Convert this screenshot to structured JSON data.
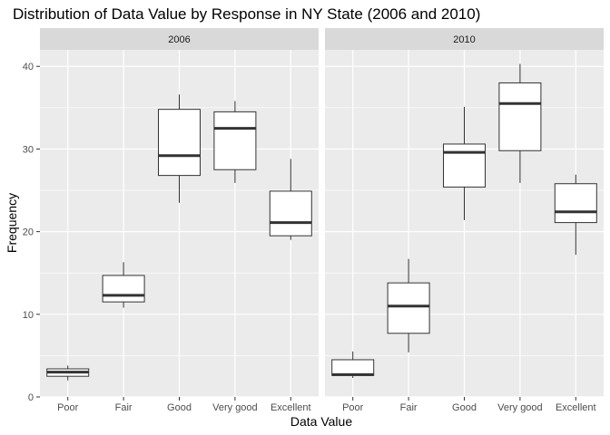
{
  "chart_data": {
    "type": "boxplot",
    "title": "Distribution of Data Value by Response in NY State (2006 and 2010)",
    "xlabel": "Data Value",
    "ylabel": "Frequency",
    "ylim": [
      0,
      42
    ],
    "yticks": [
      0,
      10,
      20,
      30,
      40
    ],
    "categories": [
      "Poor",
      "Fair",
      "Good",
      "Very good",
      "Excellent"
    ],
    "grid": true,
    "colors": {
      "panel": "#ebebeb",
      "strip": "#d9d9d9",
      "grid_major": "#ffffff",
      "box_fill": "#ffffff",
      "box_line": "#333333"
    },
    "facets": [
      {
        "label": "2006",
        "boxes": [
          {
            "category": "Poor",
            "min": 2.0,
            "q1": 2.5,
            "median": 3.0,
            "q3": 3.4,
            "max": 3.8
          },
          {
            "category": "Fair",
            "min": 10.8,
            "q1": 11.5,
            "median": 12.3,
            "q3": 14.7,
            "max": 16.3
          },
          {
            "category": "Good",
            "min": 23.5,
            "q1": 26.8,
            "median": 29.2,
            "q3": 34.8,
            "max": 36.6
          },
          {
            "category": "Very good",
            "min": 25.9,
            "q1": 27.5,
            "median": 32.5,
            "q3": 34.5,
            "max": 35.8
          },
          {
            "category": "Excellent",
            "min": 19.0,
            "q1": 19.5,
            "median": 21.1,
            "q3": 24.9,
            "max": 28.8
          }
        ]
      },
      {
        "label": "2010",
        "boxes": [
          {
            "category": "Poor",
            "min": 2.3,
            "q1": 2.6,
            "median": 2.7,
            "q3": 4.5,
            "max": 5.5
          },
          {
            "category": "Fair",
            "min": 5.4,
            "q1": 7.7,
            "median": 11.0,
            "q3": 13.8,
            "max": 16.7
          },
          {
            "category": "Good",
            "min": 21.4,
            "q1": 25.4,
            "median": 29.6,
            "q3": 30.6,
            "max": 35.1
          },
          {
            "category": "Very good",
            "min": 25.9,
            "q1": 29.8,
            "median": 35.5,
            "q3": 38.0,
            "max": 40.3
          },
          {
            "category": "Excellent",
            "min": 17.2,
            "q1": 21.1,
            "median": 22.4,
            "q3": 25.8,
            "max": 26.9
          }
        ]
      }
    ]
  }
}
